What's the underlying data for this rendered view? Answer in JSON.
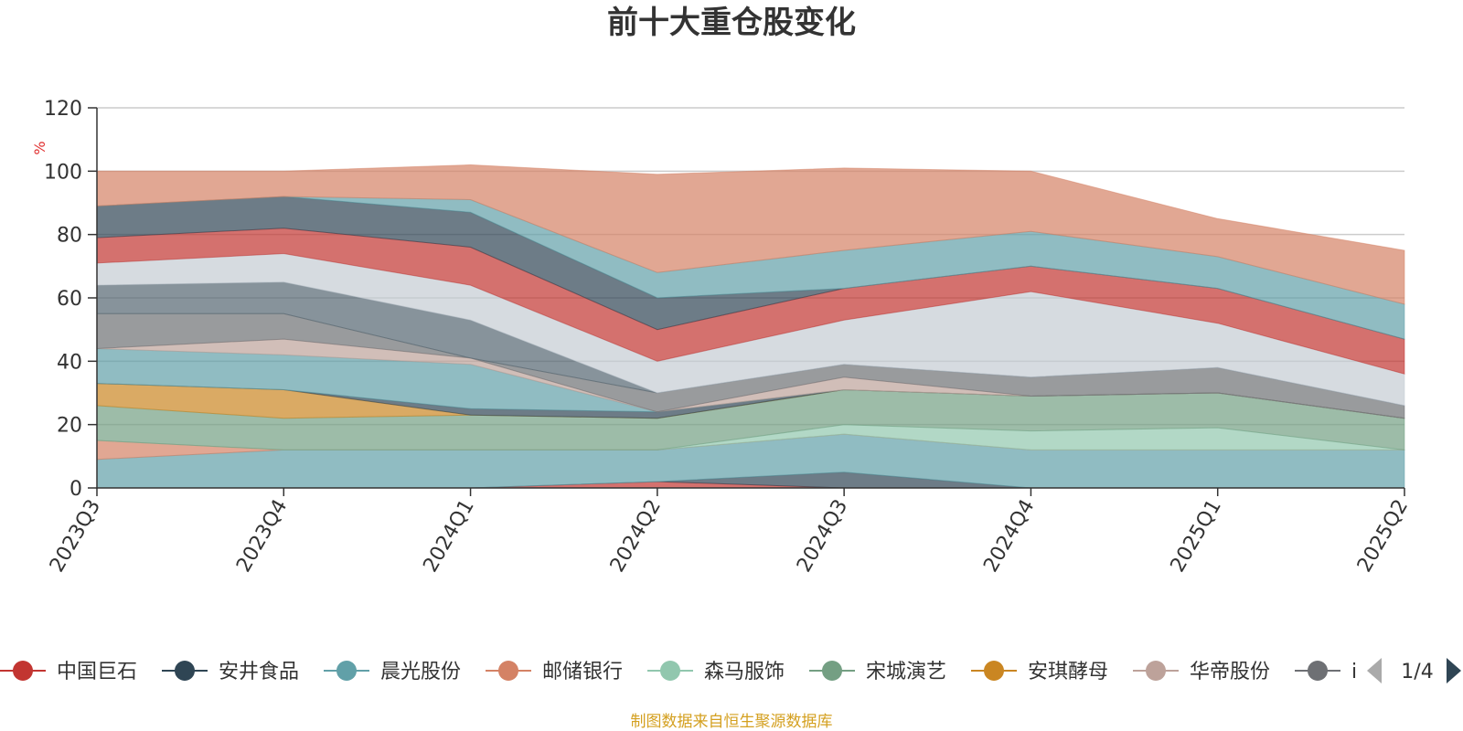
{
  "title": "前十大重仓股变化",
  "source": "制图数据来自恒生聚源数据库",
  "legend_page": "1/4",
  "legend": [
    {
      "name": "中国巨石",
      "color": "#c23531"
    },
    {
      "name": "安井食品",
      "color": "#2f4554"
    },
    {
      "name": "晨光股份",
      "color": "#61a0a8"
    },
    {
      "name": "邮储银行",
      "color": "#d48265"
    },
    {
      "name": "森马服饰",
      "color": "#91c7ae"
    },
    {
      "name": "宋城演艺",
      "color": "#749f83"
    },
    {
      "name": "安琪酵母",
      "color": "#ca8622"
    },
    {
      "name": "华帝股份",
      "color": "#bda29a"
    },
    {
      "name": "i",
      "color": "#6e7074"
    }
  ],
  "chart_data": {
    "type": "area",
    "stacked": true,
    "title": "前十大重仓股变化",
    "ylabel": "%",
    "ylim": [
      0,
      120
    ],
    "yticks": [
      0,
      20,
      40,
      60,
      80,
      100,
      120
    ],
    "grid": true,
    "x": [
      "2023Q3",
      "2023Q4",
      "2024Q1",
      "2024Q2",
      "2024Q3",
      "2024Q4",
      "2025Q1",
      "2025Q2"
    ],
    "series": [
      {
        "name": "中国巨石",
        "color": "#c23531",
        "values": [
          0,
          0,
          0,
          2,
          0,
          0,
          0,
          0
        ]
      },
      {
        "name": "安井食品",
        "color": "#2f4554",
        "values": [
          0,
          0,
          0,
          0,
          5,
          0,
          0,
          0
        ]
      },
      {
        "name": "晨光股份",
        "color": "#61a0a8",
        "values": [
          9,
          12,
          12,
          10,
          12,
          12,
          12,
          12
        ]
      },
      {
        "name": "邮储银行",
        "color": "#d48265",
        "values": [
          6,
          0,
          0,
          0,
          0,
          0,
          0,
          0
        ]
      },
      {
        "name": "森马服饰",
        "color": "#91c7ae",
        "values": [
          0,
          0,
          0,
          0,
          3,
          6,
          7,
          0
        ]
      },
      {
        "name": "宋城演艺",
        "color": "#749f83",
        "values": [
          11,
          10,
          11,
          10,
          11,
          11,
          11,
          10
        ]
      },
      {
        "name": "安琪酵母",
        "color": "#ca8622",
        "values": [
          7,
          9,
          0,
          0,
          0,
          0,
          0,
          0
        ]
      },
      {
        "name": "",
        "color": "#2f4554",
        "values": [
          0,
          0,
          2,
          2,
          0,
          0,
          0,
          0
        ]
      },
      {
        "name": "",
        "color": "#61a0a8",
        "values": [
          11,
          11,
          14,
          0,
          0,
          0,
          0,
          0
        ]
      },
      {
        "name": "华帝股份",
        "color": "#bda29a",
        "values": [
          0,
          5,
          2,
          0,
          4,
          0,
          0,
          0
        ]
      },
      {
        "name": "i",
        "color": "#6e7074",
        "values": [
          11,
          8,
          0,
          6,
          4,
          6,
          8,
          4
        ]
      },
      {
        "name": "",
        "color": "#546570",
        "values": [
          9,
          10,
          12,
          0,
          0,
          0,
          0,
          0
        ]
      },
      {
        "name": "",
        "color": "#c4ccd3",
        "values": [
          7,
          9,
          11,
          10,
          14,
          27,
          14,
          10
        ]
      },
      {
        "name": "",
        "color": "#c23531",
        "values": [
          8,
          8,
          12,
          10,
          10,
          8,
          11,
          11
        ]
      },
      {
        "name": "",
        "color": "#2f4554",
        "values": [
          10,
          10,
          11,
          10,
          0,
          0,
          0,
          0
        ]
      },
      {
        "name": "",
        "color": "#61a0a8",
        "values": [
          0,
          0,
          4,
          8,
          12,
          11,
          10,
          11
        ]
      },
      {
        "name": "",
        "color": "#d48265",
        "values": [
          11,
          8,
          11,
          31,
          26,
          19,
          12,
          17
        ]
      }
    ]
  }
}
